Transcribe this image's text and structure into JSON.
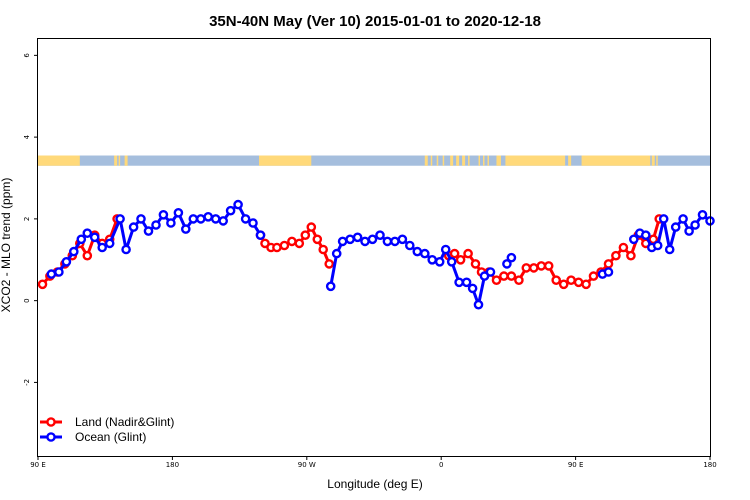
{
  "chart_data": {
    "type": "line",
    "title": "35N-40N May (Ver 10)   2015-01-01 to 2020-12-18",
    "xlabel": "Longitude (deg E)",
    "ylabel": "XCO2 - MLO trend (ppm)",
    "x_ticks": [
      {
        "value": 90,
        "label": "90 E"
      },
      {
        "value": 180,
        "label": "180"
      },
      {
        "value": 270,
        "label": "90 W"
      },
      {
        "value": 360,
        "label": "0"
      },
      {
        "value": 450,
        "label": "90 E"
      },
      {
        "value": 540,
        "label": "180"
      }
    ],
    "y_ticks": [
      {
        "value": -2,
        "label": "-2"
      },
      {
        "value": 0,
        "label": "0"
      },
      {
        "value": 2,
        "label": "2"
      },
      {
        "value": 4,
        "label": "4"
      },
      {
        "value": 6,
        "label": "6"
      }
    ],
    "xlim": [
      90,
      540
    ],
    "ylim": [
      -3.8,
      6.4
    ],
    "grid": false,
    "legend_position": "bottom-left",
    "land_ocean_strip": {
      "y_range": [
        3.3,
        3.55
      ],
      "land_color": "#ffd97a",
      "ocean_color": "#a5bedd",
      "land_ranges": [
        [
          90,
          118
        ],
        [
          141,
          143
        ],
        [
          144,
          145
        ],
        [
          148,
          150
        ],
        [
          238,
          273
        ],
        [
          349,
          351
        ],
        [
          353,
          354
        ],
        [
          357,
          358
        ],
        [
          361,
          362
        ],
        [
          366,
          368
        ],
        [
          370,
          372
        ],
        [
          374,
          376
        ],
        [
          378,
          379
        ],
        [
          385,
          386
        ],
        [
          388,
          389
        ],
        [
          391,
          392
        ],
        [
          397,
          400
        ],
        [
          403,
          443
        ],
        [
          445,
          447
        ],
        [
          454,
          500
        ],
        [
          501,
          503
        ],
        [
          504,
          505
        ]
      ]
    },
    "series": [
      {
        "name": "Land (Nadir&Glint)",
        "color": "#ff0000",
        "segments": [
          [
            [
              93,
              0.4
            ],
            [
              98,
              0.6
            ],
            [
              103,
              0.7
            ],
            [
              108,
              0.9
            ],
            [
              113,
              1.1
            ],
            [
              118,
              1.4
            ],
            [
              123,
              1.1
            ],
            [
              128,
              1.6
            ],
            [
              133,
              1.4
            ],
            [
              138,
              1.5
            ],
            [
              143,
              2.0
            ]
          ],
          [
            [
              239,
              1.6
            ],
            [
              242,
              1.4
            ],
            [
              246,
              1.3
            ],
            [
              250,
              1.3
            ],
            [
              255,
              1.35
            ],
            [
              260,
              1.45
            ],
            [
              265,
              1.4
            ],
            [
              269,
              1.6
            ],
            [
              273,
              1.8
            ],
            [
              277,
              1.5
            ],
            [
              281,
              1.25
            ],
            [
              285,
              0.9
            ]
          ],
          [
            [
              365,
              1.1
            ],
            [
              369,
              1.15
            ],
            [
              373,
              1.0
            ],
            [
              378,
              1.15
            ],
            [
              383,
              0.9
            ],
            [
              387,
              0.7
            ],
            [
              392,
              0.7
            ],
            [
              397,
              0.5
            ],
            [
              402,
              0.6
            ],
            [
              407,
              0.6
            ],
            [
              412,
              0.5
            ],
            [
              417,
              0.8
            ],
            [
              422,
              0.8
            ],
            [
              427,
              0.85
            ],
            [
              432,
              0.85
            ],
            [
              437,
              0.5
            ],
            [
              442,
              0.4
            ],
            [
              447,
              0.5
            ],
            [
              452,
              0.45
            ],
            [
              457,
              0.4
            ],
            [
              462,
              0.6
            ],
            [
              467,
              0.7
            ],
            [
              472,
              0.9
            ],
            [
              477,
              1.1
            ],
            [
              482,
              1.3
            ],
            [
              487,
              1.1
            ],
            [
              492,
              1.6
            ],
            [
              497,
              1.4
            ],
            [
              502,
              1.5
            ],
            [
              506,
              2.0
            ]
          ]
        ]
      },
      {
        "name": "Ocean (Glint)",
        "color": "#0000ff",
        "segments": [
          [
            [
              99,
              0.65
            ],
            [
              104,
              0.7
            ],
            [
              109,
              0.95
            ],
            [
              114,
              1.2
            ],
            [
              119,
              1.5
            ],
            [
              123,
              1.65
            ],
            [
              128,
              1.55
            ],
            [
              133,
              1.3
            ],
            [
              138,
              1.4
            ],
            [
              145,
              2.0
            ],
            [
              149,
              1.25
            ],
            [
              154,
              1.8
            ],
            [
              159,
              2.0
            ],
            [
              164,
              1.7
            ],
            [
              169,
              1.85
            ],
            [
              174,
              2.1
            ],
            [
              179,
              1.9
            ],
            [
              184,
              2.15
            ],
            [
              189,
              1.75
            ],
            [
              194,
              2.0
            ],
            [
              199,
              2.0
            ],
            [
              204,
              2.05
            ],
            [
              209,
              2.0
            ],
            [
              214,
              1.95
            ],
            [
              219,
              2.2
            ],
            [
              224,
              2.35
            ],
            [
              229,
              2.0
            ],
            [
              234,
              1.9
            ],
            [
              239,
              1.6
            ]
          ],
          [
            [
              286,
              0.35
            ],
            [
              290,
              1.15
            ],
            [
              294,
              1.45
            ],
            [
              299,
              1.5
            ],
            [
              304,
              1.55
            ],
            [
              309,
              1.45
            ],
            [
              314,
              1.5
            ],
            [
              319,
              1.6
            ],
            [
              324,
              1.45
            ],
            [
              329,
              1.45
            ],
            [
              334,
              1.5
            ],
            [
              339,
              1.35
            ],
            [
              344,
              1.2
            ],
            [
              349,
              1.15
            ],
            [
              354,
              1.0
            ],
            [
              359,
              0.95
            ],
            [
              363,
              1.25
            ],
            [
              367,
              0.95
            ],
            [
              372,
              0.45
            ],
            [
              377,
              0.45
            ],
            [
              381,
              0.3
            ],
            [
              385,
              -0.1
            ],
            [
              389,
              0.6
            ],
            [
              393,
              0.7
            ]
          ],
          [
            [
              404,
              0.9
            ],
            [
              407,
              1.05
            ]
          ],
          [
            [
              468,
              0.65
            ],
            [
              472,
              0.7
            ]
          ],
          [
            [
              489,
              1.5
            ],
            [
              493,
              1.65
            ],
            [
              497,
              1.6
            ],
            [
              501,
              1.3
            ],
            [
              505,
              1.35
            ],
            [
              509,
              2.0
            ],
            [
              513,
              1.25
            ],
            [
              517,
              1.8
            ],
            [
              522,
              2.0
            ],
            [
              526,
              1.7
            ],
            [
              530,
              1.85
            ],
            [
              535,
              2.1
            ],
            [
              540,
              1.95
            ]
          ]
        ]
      }
    ]
  }
}
